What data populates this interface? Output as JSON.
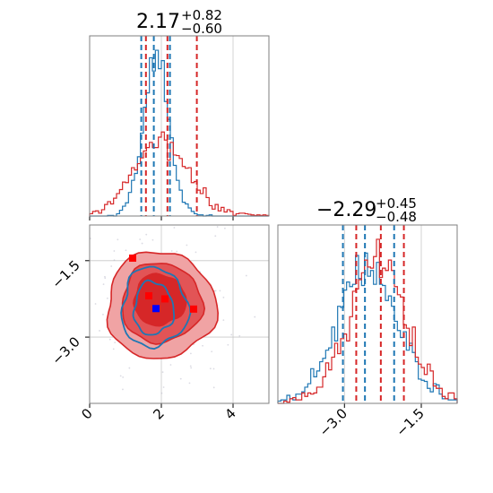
{
  "colors": {
    "blue": "#1f77b4",
    "red": "#d62728",
    "grid": "#c8c8c8",
    "frame": "#7f7f7f"
  },
  "titles": {
    "x": {
      "center": "2.17",
      "upper": "+0.82",
      "lower": "−0.60"
    },
    "y": {
      "center": "−2.29",
      "upper": "+0.45",
      "lower": "−0.48"
    }
  },
  "chart_data": {
    "type": "corner",
    "params": [
      {
        "range": [
          0,
          5
        ],
        "ticks": [
          0,
          2,
          4
        ],
        "tick_labels": [
          "0",
          "2",
          "4"
        ]
      },
      {
        "range": [
          -4.3,
          -0.8
        ],
        "ticks": [
          -3.0,
          -1.5
        ],
        "tick_labels": [
          "−3.0",
          "−1.5"
        ]
      }
    ],
    "quantile_lines": {
      "blue": {
        "x": [
          1.44,
          1.79,
          2.24
        ],
        "y": [
          -3.03,
          -2.6,
          -2.03
        ]
      },
      "red": {
        "x": [
          1.57,
          2.17,
          2.99
        ],
        "y": [
          -2.77,
          -2.29,
          -1.84
        ]
      }
    },
    "markers": [
      {
        "color": "red",
        "x": 1.2,
        "y": -1.45
      },
      {
        "color": "red",
        "x": 1.65,
        "y": -2.19
      },
      {
        "color": "red",
        "x": 2.1,
        "y": -2.25
      },
      {
        "color": "red",
        "x": 2.9,
        "y": -2.45
      },
      {
        "color": "blue",
        "x": 1.85,
        "y": -2.44
      }
    ],
    "histograms": {
      "x": {
        "blue_center": 1.85,
        "blue_sigma": 0.33,
        "red_center": 2.0,
        "red_sigma": 0.72
      },
      "y": {
        "blue_center": -2.55,
        "blue_sigma": 0.55,
        "red_center": -2.35,
        "red_sigma": 0.52
      }
    },
    "contours_2d": {
      "red": [
        {
          "level": "outer",
          "cx": 1.98,
          "cy": -2.38,
          "rx": 1.52,
          "ry": 1.05
        },
        {
          "level": "middle",
          "cx": 2.0,
          "cy": -2.33,
          "rx": 1.12,
          "ry": 0.78
        },
        {
          "level": "inner",
          "cx": 1.95,
          "cy": -2.27,
          "rx": 0.72,
          "ry": 0.5
        }
      ],
      "blue": [
        {
          "level": "outer",
          "cx": 1.8,
          "cy": -2.42,
          "rx": 0.92,
          "ry": 0.78
        },
        {
          "level": "inner",
          "cx": 1.78,
          "cy": -2.44,
          "rx": 0.55,
          "ry": 0.52
        }
      ]
    }
  }
}
